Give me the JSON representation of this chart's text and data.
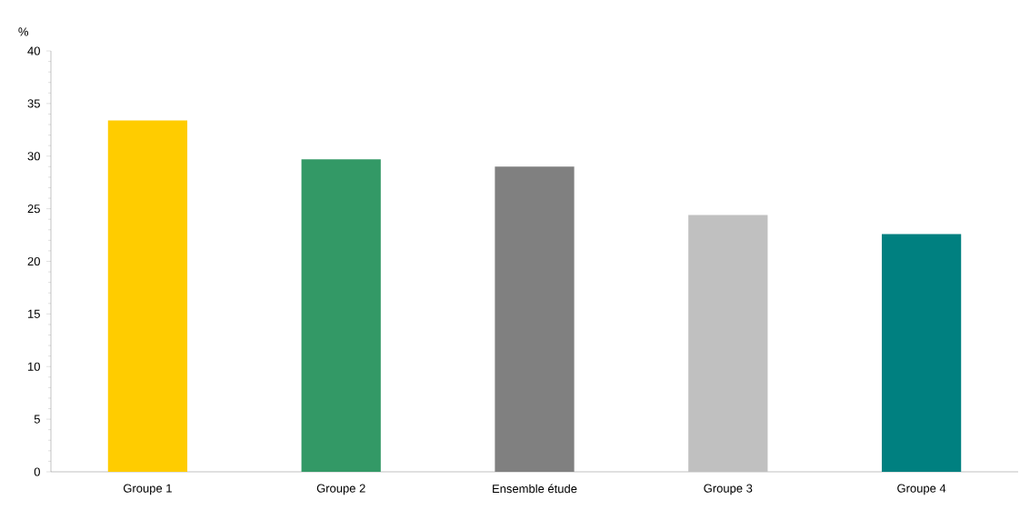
{
  "chart_data": {
    "type": "bar",
    "ylabel": "%",
    "categories": [
      "Groupe 1",
      "Groupe 2",
      "Ensemble étude",
      "Groupe 3",
      "Groupe 4"
    ],
    "values": [
      33.4,
      29.7,
      29.0,
      24.4,
      22.6
    ],
    "colors": [
      "#ffcc00",
      "#339966",
      "#808080",
      "#c0c0c0",
      "#008080"
    ],
    "ylim": [
      0,
      40
    ],
    "yticks": [
      0,
      5,
      10,
      15,
      20,
      25,
      30,
      35,
      40
    ]
  }
}
